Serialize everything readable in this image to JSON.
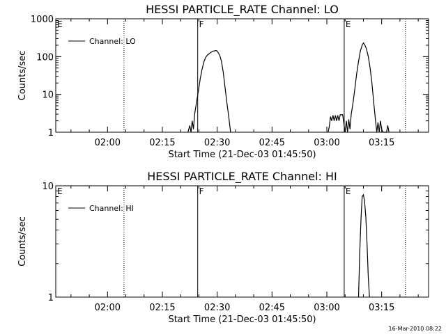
{
  "footer": "16-Mar-2010 08:22",
  "chart_data": [
    {
      "type": "line",
      "title": "HESSI PARTICLE_RATE Channel: LO",
      "xlabel": "Start Time (21-Dec-03 01:45:50)",
      "ylabel": "Counts/sec",
      "yscale": "log",
      "xlim": [
        "01:45:50",
        "03:27:50"
      ],
      "ylim": [
        1,
        1000
      ],
      "xticks": [
        "02:00",
        "02:15",
        "02:30",
        "02:45",
        "03:00",
        "03:15"
      ],
      "yticks": [
        {
          "value": 1,
          "label": "1"
        },
        {
          "value": 10,
          "label": "10"
        },
        {
          "value": 100,
          "label": "100"
        },
        {
          "value": 1000,
          "label": "1000"
        }
      ],
      "grid": false,
      "legend": {
        "position": "top-left",
        "entries": [
          "Channel: LO"
        ]
      },
      "markers": [
        {
          "time": "01:45:50",
          "label": "E",
          "style": "dotted"
        },
        {
          "time": "02:04:30",
          "label": "",
          "style": "dotted"
        },
        {
          "time": "02:24:40",
          "label": "F",
          "style": "solid"
        },
        {
          "time": "03:04:45",
          "label": "E",
          "style": "solid"
        },
        {
          "time": "03:21:30",
          "label": "",
          "style": "dotted"
        }
      ],
      "series": [
        {
          "name": "Channel: LO",
          "segments": [
            [
              [
                "02:22:00",
                1
              ],
              [
                "02:22:30",
                1.5
              ],
              [
                "02:22:50",
                1
              ],
              [
                "02:23:10",
                2
              ],
              [
                "02:23:30",
                1.2
              ],
              [
                "02:23:50",
                3
              ],
              [
                "02:24:20",
                6
              ],
              [
                "02:24:50",
                12
              ],
              [
                "02:25:20",
                25
              ],
              [
                "02:25:50",
                45
              ],
              [
                "02:26:20",
                70
              ],
              [
                "02:26:50",
                95
              ],
              [
                "02:27:20",
                110
              ],
              [
                "02:27:50",
                120
              ],
              [
                "02:28:20",
                130
              ],
              [
                "02:28:50",
                138
              ],
              [
                "02:29:20",
                143
              ],
              [
                "02:29:50",
                145
              ],
              [
                "02:30:10",
                132
              ],
              [
                "02:30:40",
                110
              ],
              [
                "02:31:10",
                75
              ],
              [
                "02:31:40",
                38
              ],
              [
                "02:32:10",
                15
              ],
              [
                "02:32:40",
                6
              ],
              [
                "02:33:10",
                2.5
              ],
              [
                "02:33:40",
                1
              ]
            ],
            [
              [
                "03:00:20",
                1
              ],
              [
                "03:00:40",
                1.4
              ],
              [
                "03:01:00",
                2.6
              ],
              [
                "03:01:20",
                2
              ],
              [
                "03:01:40",
                2.8
              ],
              [
                "03:02:00",
                2
              ],
              [
                "03:02:20",
                2.8
              ],
              [
                "03:02:40",
                2
              ],
              [
                "03:03:00",
                2.8
              ],
              [
                "03:03:20",
                2
              ],
              [
                "03:03:40",
                2.9
              ],
              [
                "03:04:20",
                2.9
              ],
              [
                "03:05:00",
                1
              ],
              [
                "03:05:20",
                2
              ],
              [
                "03:05:40",
                1
              ],
              [
                "03:06:00",
                2.2
              ],
              [
                "03:06:20",
                1.2
              ],
              [
                "03:06:40",
                3
              ],
              [
                "03:07:10",
                6
              ],
              [
                "03:07:40",
                14
              ],
              [
                "03:08:10",
                35
              ],
              [
                "03:08:40",
                75
              ],
              [
                "03:09:10",
                140
              ],
              [
                "03:09:40",
                200
              ],
              [
                "03:10:00",
                230
              ],
              [
                "03:10:20",
                210
              ],
              [
                "03:10:50",
                160
              ],
              [
                "03:11:20",
                100
              ],
              [
                "03:11:50",
                50
              ],
              [
                "03:12:20",
                20
              ],
              [
                "03:12:50",
                6
              ],
              [
                "03:13:20",
                2
              ],
              [
                "03:13:40",
                1
              ],
              [
                "03:14:00",
                1.8
              ],
              [
                "03:14:20",
                1
              ],
              [
                "03:14:40",
                2
              ],
              [
                "03:15:00",
                1.2
              ],
              [
                "03:15:20",
                1
              ],
              [
                "03:16:20",
                1
              ],
              [
                "03:16:40",
                1.5
              ],
              [
                "03:17:00",
                1
              ]
            ]
          ]
        }
      ]
    },
    {
      "type": "line",
      "title": "HESSI PARTICLE_RATE Channel: HI",
      "xlabel": "Start Time (21-Dec-03 01:45:50)",
      "ylabel": "Counts/sec",
      "yscale": "log",
      "xlim": [
        "01:45:50",
        "03:27:50"
      ],
      "ylim": [
        1,
        10
      ],
      "xticks": [
        "02:00",
        "02:15",
        "02:30",
        "02:45",
        "03:00",
        "03:15"
      ],
      "yticks": [
        {
          "value": 1,
          "label": "1"
        },
        {
          "value": 10,
          "label": "10"
        }
      ],
      "grid": false,
      "legend": {
        "position": "top-left",
        "entries": [
          "Channel: HI"
        ]
      },
      "markers": [
        {
          "time": "01:45:50",
          "label": "E",
          "style": "dotted"
        },
        {
          "time": "02:04:30",
          "label": "",
          "style": "dotted"
        },
        {
          "time": "02:24:40",
          "label": "F",
          "style": "solid"
        },
        {
          "time": "03:04:45",
          "label": "E",
          "style": "solid"
        },
        {
          "time": "03:21:30",
          "label": "",
          "style": "dotted"
        }
      ],
      "series": [
        {
          "name": "Channel: HI",
          "segments": [
            [
              [
                "03:08:40",
                1
              ],
              [
                "03:09:00",
                2.5
              ],
              [
                "03:09:20",
                5
              ],
              [
                "03:09:40",
                8
              ],
              [
                "03:10:00",
                8.3
              ],
              [
                "03:10:20",
                7.2
              ],
              [
                "03:10:40",
                5.2
              ],
              [
                "03:11:00",
                3
              ],
              [
                "03:11:20",
                1.5
              ],
              [
                "03:11:40",
                1
              ]
            ]
          ]
        }
      ]
    }
  ]
}
